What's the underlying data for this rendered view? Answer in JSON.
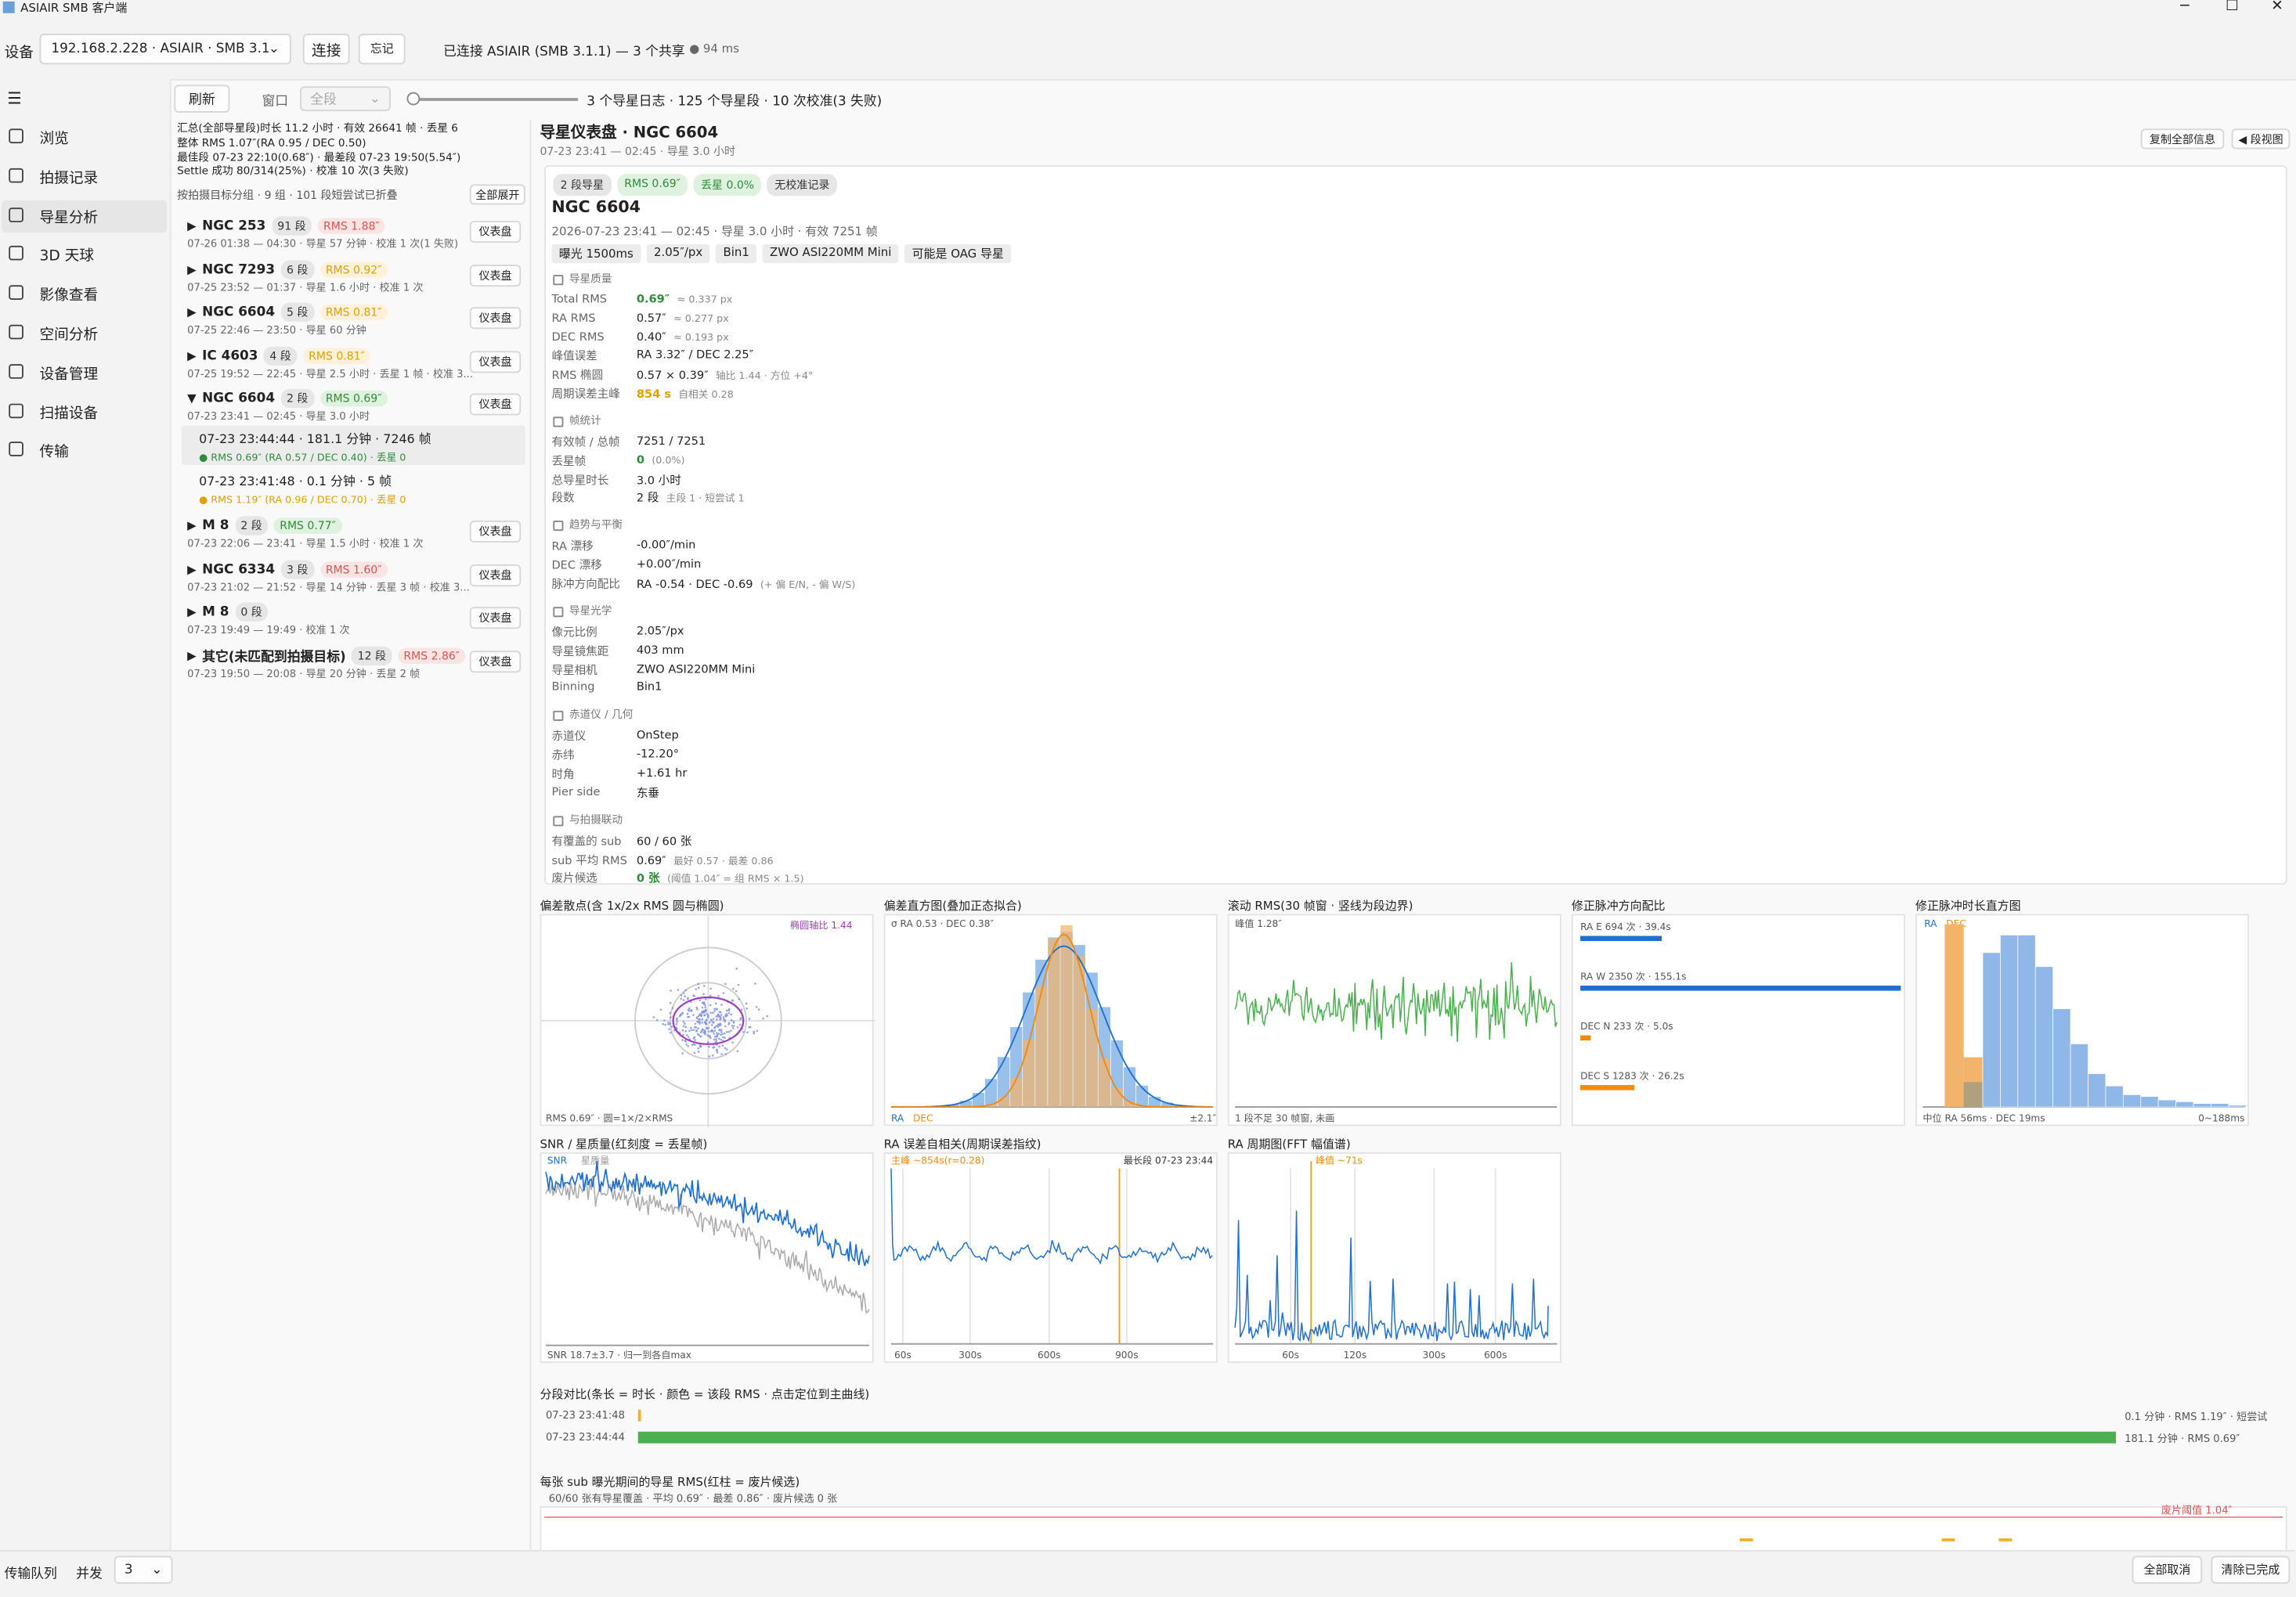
{
  "window": {
    "title": "ASIAIR SMB 客户端"
  },
  "toolbar": {
    "device_label": "设备",
    "device": "192.168.2.228 · ASIAIR · SMB 3.1",
    "connect": "连接",
    "forget": "忘记",
    "status": "已连接 ASIAIR (SMB 3.1.1) — 3 个共享",
    "latency": "● 94 ms"
  },
  "nav": [
    "浏览",
    "拍摄记录",
    "导星分析",
    "3D 天球",
    "影像查看",
    "空间分析",
    "设备管理",
    "扫描设备",
    "传输"
  ],
  "nav_selected": 2,
  "subbar": {
    "refresh": "刷新",
    "window": "窗口",
    "range": "全段",
    "summary": "3 个导星日志 · 125 个导星段 · 10 次校准(3 失败)"
  },
  "summary": {
    "lines": [
      "汇总(全部导星段)时长 11.2 小时 · 有效 26641 帧 · 丢星 6",
      "整体 RMS 1.07″(RA 0.95 / DEC 0.50)",
      "最佳段 07-23 22:10(0.68″) · 最差段 07-23 19:50(5.54″)",
      "Settle 成功 80/314(25%) · 校准 10 次(3 失败)"
    ],
    "group_hint": "按拍摄目标分组 · 9 组 · 101 段短尝试已折叠",
    "expand_all": "全部展开"
  },
  "dashboard_button": "仪表盘",
  "groups": [
    {
      "name": "NGC 253",
      "count": "91 段",
      "rms": "RMS 1.88″",
      "tone": "red",
      "subtitle": "07-26 01:38 — 04:30 · 导星 57 分钟 · 校准 1 次(1 失败)"
    },
    {
      "name": "NGC 7293",
      "count": "6 段",
      "rms": "RMS 0.92″",
      "tone": "orange",
      "subtitle": "07-25 23:52 — 01:37 · 导星 1.6 小时 · 校准 1 次"
    },
    {
      "name": "NGC 6604",
      "count": "5 段",
      "rms": "RMS 0.81″",
      "tone": "orange",
      "subtitle": "07-25 22:46 — 23:50 · 导星 60 分钟"
    },
    {
      "name": "IC 4603",
      "count": "4 段",
      "rms": "RMS 0.81″",
      "tone": "orange",
      "subtitle": "07-25 19:52 — 22:45 · 导星 2.5 小时 · 丢星 1 帧 · 校准 3..."
    },
    {
      "name": "NGC 6604",
      "count": "2 段",
      "rms": "RMS 0.69″",
      "tone": "green",
      "subtitle": "07-23 23:41 — 02:45 · 导星 3.0 小时",
      "expanded": true,
      "segments": [
        {
          "title": "07-23 23:44:44 · 181.1 分钟 · 7246 帧",
          "detail": "● RMS 0.69″ (RA 0.57 / DEC 0.40) · 丢星 0",
          "tone": "green",
          "selected": true
        },
        {
          "title": "07-23 23:41:48 · 0.1 分钟 · 5 帧",
          "detail": "● RMS 1.19″ (RA 0.96 / DEC 0.70) · 丢星 0",
          "tone": "orange"
        }
      ]
    },
    {
      "name": "M 8",
      "count": "2 段",
      "rms": "RMS 0.77″",
      "tone": "green",
      "subtitle": "07-23 22:06 — 23:41 · 导星 1.5 小时 · 校准 1 次"
    },
    {
      "name": "NGC 6334",
      "count": "3 段",
      "rms": "RMS 1.60″",
      "tone": "red",
      "subtitle": "07-23 21:02 — 21:52 · 导星 14 分钟 · 丢星 3 帧 · 校准 3..."
    },
    {
      "name": "M 8",
      "count": "0 段",
      "subtitle": "07-23 19:49 — 19:49 · 校准 1 次"
    },
    {
      "name": "其它(未匹配到拍摄目标)",
      "count": "12 段",
      "rms": "RMS 2.86″",
      "tone": "red",
      "subtitle": "07-23 19:50 — 20:08 · 导星 20 分钟 · 丢星 2 帧"
    }
  ],
  "header": {
    "title": "导星仪表盘 · NGC 6604",
    "subtitle": "07-23 23:41 — 02:45 · 导星 3.0 小时",
    "copy": "复制全部信息",
    "segment_view": "◀ 段视图"
  },
  "card": {
    "badges": [
      {
        "text": "2 段导星",
        "tone": "gray"
      },
      {
        "text": "RMS 0.69″",
        "tone": "green"
      },
      {
        "text": "丢星 0.0%",
        "tone": "green"
      },
      {
        "text": "无校准记录",
        "tone": "gray"
      }
    ],
    "title": "NGC 6604",
    "subtitle": "2026-07-23 23:41 — 02:45 · 导星 3.0 小时 · 有效 7251 帧",
    "tags": [
      "曝光 1500ms",
      "2.05″/px",
      "Bin1",
      "ZWO ASI220MM Mini",
      "可能是 OAG 导星"
    ],
    "sections": [
      {
        "title": "导星质量",
        "rows": [
          {
            "label": "Total RMS",
            "value": "0.69″",
            "tone": "green",
            "note": "≈ 0.337 px"
          },
          {
            "label": "RA RMS",
            "value": "0.57″",
            "note": "≈ 0.277 px"
          },
          {
            "label": "DEC RMS",
            "value": "0.40″",
            "note": "≈ 0.193 px"
          },
          {
            "label": "峰值误差",
            "value": "RA 3.32″ / DEC 2.25″"
          },
          {
            "label": "RMS 椭圆",
            "value": "0.57 × 0.39″",
            "note": "轴比 1.44 · 方位 +4°"
          },
          {
            "label": "周期误差主峰",
            "value": "854 s",
            "tone": "orange",
            "note": "自相关 0.28"
          }
        ]
      },
      {
        "title": "帧统计",
        "rows": [
          {
            "label": "有效帧 / 总帧",
            "value": "7251 / 7251"
          },
          {
            "label": "丢星帧",
            "value": "0",
            "tone": "green",
            "note": "(0.0%)"
          },
          {
            "label": "总导星时长",
            "value": "3.0 小时"
          },
          {
            "label": "段数",
            "value": "2 段",
            "note": "主段 1 · 短尝试 1"
          }
        ]
      },
      {
        "title": "趋势与平衡",
        "rows": [
          {
            "label": "RA 漂移",
            "value": "-0.00″/min"
          },
          {
            "label": "DEC 漂移",
            "value": "+0.00″/min"
          },
          {
            "label": "脉冲方向配比",
            "value": "RA -0.54 · DEC -0.69",
            "note": "(+ 偏 E/N, - 偏 W/S)"
          }
        ]
      },
      {
        "title": "导星光学",
        "rows": [
          {
            "label": "像元比例",
            "value": "2.05″/px"
          },
          {
            "label": "导星镜焦距",
            "value": "403 mm"
          },
          {
            "label": "导星相机",
            "value": "ZWO ASI220MM Mini"
          },
          {
            "label": "Binning",
            "value": "Bin1"
          }
        ]
      },
      {
        "title": "赤道仪 / 几何",
        "rows": [
          {
            "label": "赤道仪",
            "value": "OnStep"
          },
          {
            "label": "赤纬",
            "value": "-12.20°"
          },
          {
            "label": "时角",
            "value": "+1.61 hr"
          },
          {
            "label": "Pier side",
            "value": "东垂"
          }
        ]
      },
      {
        "title": "与拍摄联动",
        "rows": [
          {
            "label": "有覆盖的 sub",
            "value": "60 / 60 张"
          },
          {
            "label": "sub 平均 RMS",
            "value": "0.69″",
            "note": "最好 0.57 · 最差 0.86"
          },
          {
            "label": "废片候选",
            "value": "0 张",
            "tone": "green",
            "note": "(阈值 1.04″ = 组 RMS × 1.5)"
          }
        ]
      }
    ]
  },
  "charts": {
    "scatter": {
      "title": "偏差散点(含 1x/2x RMS 圆与椭圆)",
      "ellipse": "椭圆轴比 1.44",
      "footer": "RMS 0.69″ · 圆=1×/2×RMS"
    },
    "histogram": {
      "title": "偏差直方图(叠加正态拟合)",
      "sigma": "σ RA 0.53 · DEC 0.38″",
      "ra": "RA",
      "dec": "DEC",
      "range": "±2.1″"
    },
    "rolling": {
      "title": "滚动 RMS(30 帧窗 · 竖线为段边界)",
      "peak": "峰值 1.28″",
      "footer": "1 段不足 30 帧窗, 未画"
    },
    "pulses": {
      "title": "修正脉冲方向配比",
      "items": [
        {
          "label": "RA E 694 次 · 39.4s",
          "seconds": 39.4
        },
        {
          "label": "RA W 2350 次 · 155.1s",
          "seconds": 155.1
        },
        {
          "label": "DEC N 233 次 · 5.0s",
          "seconds": 5.0
        },
        {
          "label": "DEC S 1283 次 · 26.2s",
          "seconds": 26.2
        }
      ],
      "color": "#1f6fd0",
      "alt_color": "#f08a10"
    },
    "durations": {
      "title": "修正脉冲时长直方图",
      "ra": "RA",
      "dec": "DEC",
      "median": "中位 RA 56ms · DEC 19ms",
      "range": "0~188ms"
    },
    "snr": {
      "title": "SNR / 星质量(红刻度 = 丢星帧)",
      "snr": "SNR",
      "quality": "星质量",
      "footer": "SNR 18.7±3.7 · 归一到各自max"
    },
    "autocorr": {
      "title": "RA 误差自相关(周期误差指纹)",
      "peak": "主峰 ~854s(r=0.28)",
      "longest": "最长段 07-23 23:44",
      "ticks": [
        "60s",
        "300s",
        "600s",
        "900s"
      ]
    },
    "fft": {
      "title": "RA 周期图(FFT 幅值谱)",
      "peak": "峰值 ~71s",
      "ticks": [
        "60s",
        "120s",
        "300s",
        "600s"
      ]
    }
  },
  "segments": {
    "title": "分段对比(条长 = 时长 · 颜色 = 该段 RMS · 点击定位到主曲线)",
    "rows": [
      {
        "start": "07-23 23:41:48",
        "minutes": 0.1,
        "label": "0.1 分钟 · RMS 1.19″ · 短尝试",
        "color": "#f0b020"
      },
      {
        "start": "07-23 23:44:44",
        "minutes": 181.1,
        "label": "181.1 分钟 · RMS 0.69″",
        "color": "#4caf50"
      }
    ]
  },
  "subs": {
    "title": "每张 sub 曝光期间的导星 RMS(红柱 = 废片候选)",
    "subtitle": "60/60 张有导星覆盖 · 平均 0.69″ · 最差 0.86″ · 废片候选 0 张",
    "threshold": "废片阈值 1.04″"
  },
  "bottom": {
    "queue": "传输队列",
    "concurrency": "并发",
    "concurrency_value": "3",
    "cancel_all": "全部取消",
    "clear_done": "清除已完成"
  }
}
